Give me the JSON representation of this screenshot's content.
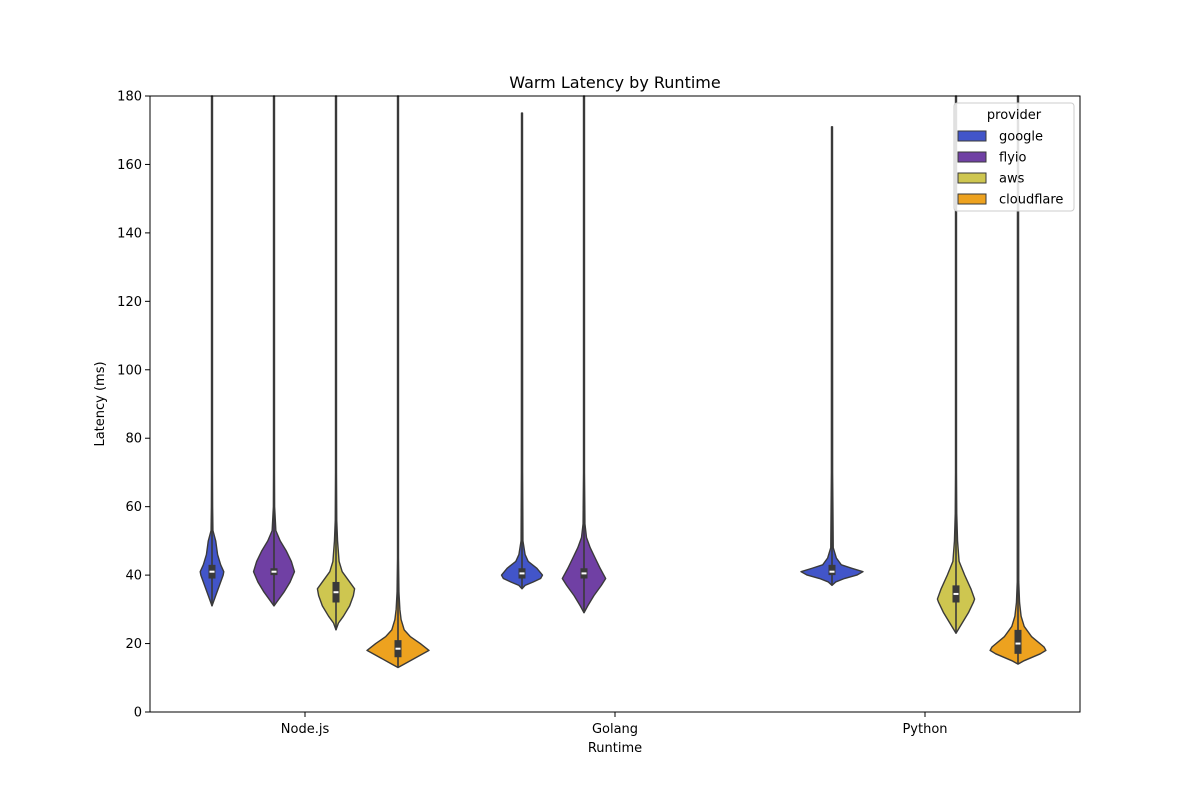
{
  "chart_data": {
    "type": "violin",
    "title": "Warm  Latency by Runtime",
    "xlabel": "Runtime",
    "ylabel": "Latency (ms)",
    "ylim": [
      0,
      180
    ],
    "yticks": [
      0,
      20,
      40,
      60,
      80,
      100,
      120,
      140,
      160,
      180
    ],
    "categories": [
      "Node.js",
      "Golang",
      "Python"
    ],
    "grid": false,
    "legend": {
      "title": "provider",
      "placement": "top-right",
      "entries": [
        {
          "name": "google",
          "color": "#4255c9"
        },
        {
          "name": "flyio",
          "color": "#7040a4"
        },
        {
          "name": "aws",
          "color": "#cec650"
        },
        {
          "name": "cloudflare",
          "color": "#eda21f"
        }
      ]
    },
    "series": [
      {
        "name": "google",
        "color": "#4255c9",
        "violins": [
          {
            "category": "Node.js",
            "min": 31,
            "max": 180,
            "median": 41,
            "q1": 39,
            "q3": 43,
            "profile": [
              [
                31,
                0.0
              ],
              [
                34,
                0.06
              ],
              [
                37,
                0.12
              ],
              [
                40,
                0.18
              ],
              [
                41,
                0.19
              ],
              [
                43,
                0.14
              ],
              [
                46,
                0.09
              ],
              [
                50,
                0.06
              ],
              [
                53,
                0.015
              ],
              [
                60,
                0.01
              ],
              [
                70,
                0.008
              ],
              [
                180,
                0.008
              ]
            ]
          },
          {
            "category": "Golang",
            "min": 36,
            "max": 175,
            "median": 40.5,
            "q1": 39,
            "q3": 42,
            "profile": [
              [
                36,
                0.0
              ],
              [
                37,
                0.05
              ],
              [
                38,
                0.18
              ],
              [
                39,
                0.3
              ],
              [
                40,
                0.33
              ],
              [
                42,
                0.24
              ],
              [
                44,
                0.1
              ],
              [
                46,
                0.05
              ],
              [
                50,
                0.015
              ],
              [
                70,
                0.01
              ],
              [
                175,
                0.008
              ]
            ]
          },
          {
            "category": "Python",
            "min": 37,
            "max": 171,
            "median": 41,
            "q1": 40,
            "q3": 43,
            "profile": [
              [
                37,
                0.0
              ],
              [
                38,
                0.06
              ],
              [
                39,
                0.2
              ],
              [
                40,
                0.4
              ],
              [
                41,
                0.5
              ],
              [
                42,
                0.32
              ],
              [
                43,
                0.15
              ],
              [
                45,
                0.07
              ],
              [
                48,
                0.02
              ],
              [
                70,
                0.01
              ],
              [
                171,
                0.008
              ]
            ]
          }
        ]
      },
      {
        "name": "flyio",
        "color": "#7040a4",
        "violins": [
          {
            "category": "Node.js",
            "min": 31,
            "max": 180,
            "median": 41,
            "q1": 40,
            "q3": 42,
            "profile": [
              [
                31,
                0.0
              ],
              [
                32,
                0.04
              ],
              [
                35,
                0.16
              ],
              [
                38,
                0.26
              ],
              [
                41,
                0.33
              ],
              [
                44,
                0.28
              ],
              [
                47,
                0.2
              ],
              [
                50,
                0.1
              ],
              [
                53,
                0.03
              ],
              [
                60,
                0.01
              ],
              [
                70,
                0.008
              ],
              [
                180,
                0.008
              ]
            ]
          },
          {
            "category": "Golang",
            "min": 29,
            "max": 180,
            "median": 40.5,
            "q1": 39,
            "q3": 42,
            "profile": [
              [
                29,
                0.0
              ],
              [
                31,
                0.06
              ],
              [
                34,
                0.16
              ],
              [
                37,
                0.28
              ],
              [
                39,
                0.35
              ],
              [
                42,
                0.26
              ],
              [
                45,
                0.18
              ],
              [
                48,
                0.1
              ],
              [
                51,
                0.04
              ],
              [
                55,
                0.015
              ],
              [
                70,
                0.008
              ],
              [
                180,
                0.008
              ]
            ]
          }
        ]
      },
      {
        "name": "aws",
        "color": "#cec650",
        "violins": [
          {
            "category": "Node.js",
            "min": 24,
            "max": 180,
            "median": 35,
            "q1": 32,
            "q3": 38,
            "profile": [
              [
                24,
                0.0
              ],
              [
                26,
                0.04
              ],
              [
                28,
                0.12
              ],
              [
                31,
                0.22
              ],
              [
                34,
                0.28
              ],
              [
                36,
                0.3
              ],
              [
                38,
                0.22
              ],
              [
                41,
                0.1
              ],
              [
                44,
                0.05
              ],
              [
                50,
                0.025
              ],
              [
                56,
                0.012
              ],
              [
                70,
                0.008
              ],
              [
                180,
                0.008
              ]
            ]
          },
          {
            "category": "Python",
            "min": 23,
            "max": 180,
            "median": 34.5,
            "q1": 32,
            "q3": 37,
            "profile": [
              [
                23,
                0.0
              ],
              [
                26,
                0.1
              ],
              [
                29,
                0.2
              ],
              [
                32,
                0.28
              ],
              [
                33,
                0.3
              ],
              [
                36,
                0.24
              ],
              [
                40,
                0.14
              ],
              [
                44,
                0.05
              ],
              [
                50,
                0.025
              ],
              [
                58,
                0.012
              ],
              [
                70,
                0.008
              ],
              [
                180,
                0.008
              ]
            ]
          }
        ]
      },
      {
        "name": "cloudflare",
        "color": "#eda21f",
        "violins": [
          {
            "category": "Node.js",
            "min": 13,
            "max": 180,
            "median": 18.5,
            "q1": 16,
            "q3": 21,
            "profile": [
              [
                13,
                0.0
              ],
              [
                14,
                0.1
              ],
              [
                16,
                0.3
              ],
              [
                18,
                0.5
              ],
              [
                20,
                0.36
              ],
              [
                22,
                0.2
              ],
              [
                24,
                0.1
              ],
              [
                27,
                0.05
              ],
              [
                30,
                0.03
              ],
              [
                35,
                0.015
              ],
              [
                45,
                0.008
              ],
              [
                180,
                0.008
              ]
            ]
          },
          {
            "category": "Python",
            "min": 14,
            "max": 180,
            "median": 20,
            "q1": 17,
            "q3": 24,
            "profile": [
              [
                14,
                0.0
              ],
              [
                15,
                0.1
              ],
              [
                17,
                0.36
              ],
              [
                18,
                0.45
              ],
              [
                19,
                0.42
              ],
              [
                22,
                0.22
              ],
              [
                25,
                0.1
              ],
              [
                28,
                0.05
              ],
              [
                32,
                0.025
              ],
              [
                38,
                0.012
              ],
              [
                180,
                0.008
              ]
            ]
          }
        ]
      }
    ]
  }
}
